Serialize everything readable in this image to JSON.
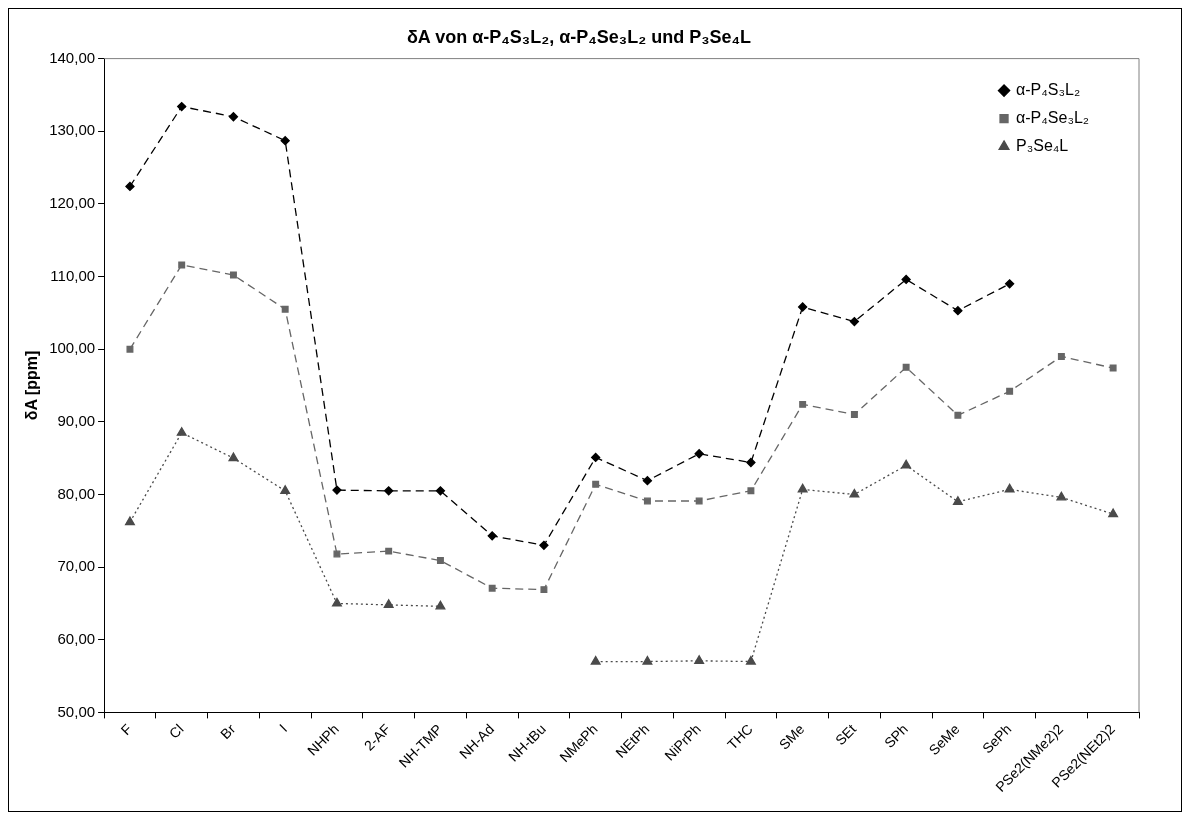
{
  "chart_data": {
    "type": "line",
    "title": "δA von α-P₄S₃L₂, α-P₄Se₃L₂ und P₃Se₄L",
    "ylabel": "δA [ppm]",
    "categories": [
      "F",
      "Cl",
      "Br",
      "I",
      "NHPh",
      "2-AF",
      "NH-TMP",
      "NH-Ad",
      "NH-tBu",
      "NMePh",
      "NEtPh",
      "NiPrPh",
      "THC",
      "SMe",
      "SEt",
      "SPh",
      "SeMe",
      "SePh",
      "PSe2(NMe2)2",
      "PSe2(NEt2)2"
    ],
    "series": [
      {
        "name": "α-P₄S₃L₂",
        "color": "#000000",
        "marker": "diamond",
        "line_style": "dashed",
        "values": [
          122.4,
          133.4,
          132.0,
          128.7,
          80.6,
          80.5,
          80.5,
          74.3,
          73.0,
          85.1,
          81.9,
          85.6,
          84.4,
          105.8,
          103.8,
          109.6,
          105.3,
          109.0,
          null,
          null
        ]
      },
      {
        "name": "α-P₄Se₃L₂",
        "color": "#666666",
        "marker": "square",
        "line_style": "dashed",
        "values": [
          100.0,
          111.6,
          110.2,
          105.5,
          71.8,
          72.2,
          70.9,
          67.1,
          66.9,
          81.4,
          79.1,
          79.1,
          80.5,
          92.4,
          91.0,
          97.5,
          90.9,
          94.2,
          99.0,
          97.4
        ]
      },
      {
        "name": "P₃Se₄L",
        "color": "#4a4a4a",
        "marker": "triangle",
        "line_style": "dotted",
        "values": [
          76.2,
          88.5,
          85.0,
          80.5,
          65.0,
          64.8,
          64.6,
          null,
          null,
          57.0,
          57.0,
          57.1,
          57.0,
          80.7,
          80.0,
          84.0,
          79.0,
          80.7,
          79.6,
          77.3
        ]
      }
    ],
    "ylim": [
      50,
      140
    ],
    "yticks": [
      {
        "value": 50,
        "label": "50,00"
      },
      {
        "value": 60,
        "label": "60,00"
      },
      {
        "value": 70,
        "label": "70,00"
      },
      {
        "value": 80,
        "label": "80,00"
      },
      {
        "value": 90,
        "label": "90,00"
      },
      {
        "value": 100,
        "label": "100,00"
      },
      {
        "value": 110,
        "label": "110,00"
      },
      {
        "value": 120,
        "label": "120,00"
      },
      {
        "value": 130,
        "label": "130,00"
      },
      {
        "value": 140,
        "label": "140,00"
      }
    ],
    "grid": false,
    "legend": "top right"
  }
}
